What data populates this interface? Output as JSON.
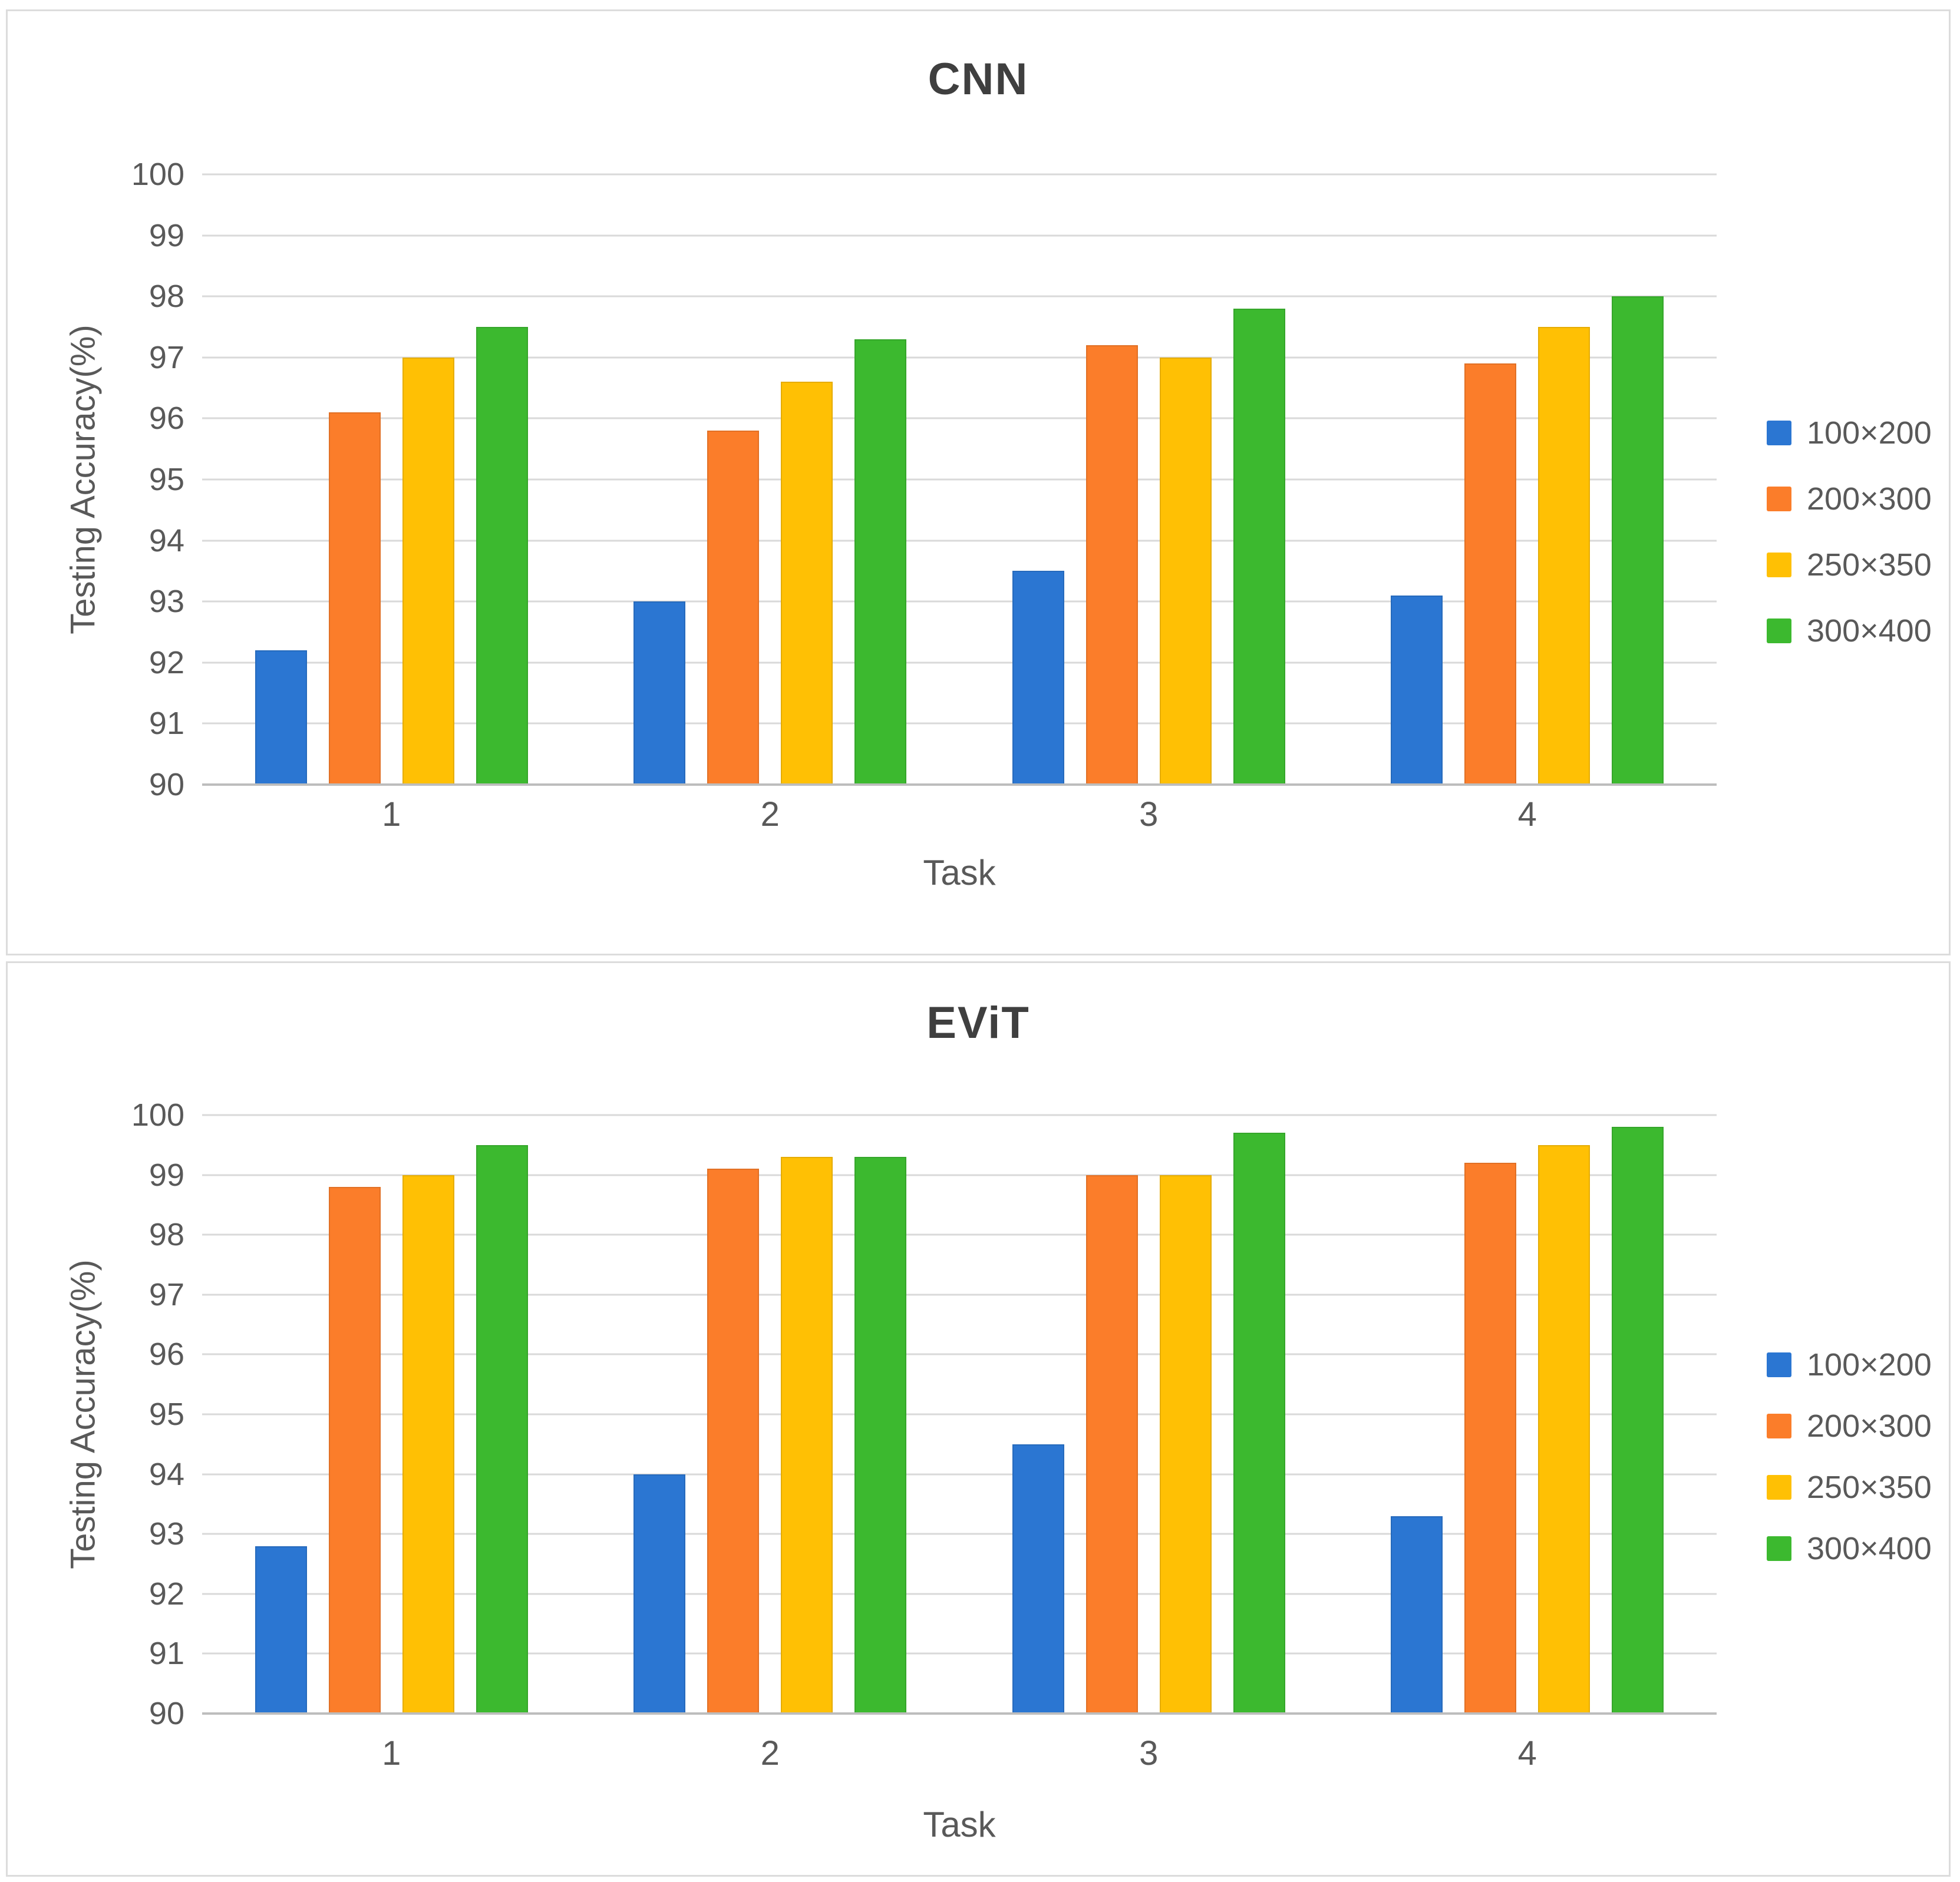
{
  "figure": {
    "panels": [
      "CNN",
      "EViT"
    ],
    "colors": {
      "blue": "#2B76D2",
      "orange": "#FB7D2A",
      "yellow": "#FFC004",
      "green": "#3CB92F",
      "gridline": "#D9D9D9",
      "axis_line": "#BDBDBD",
      "title_text": "#3F3F3F",
      "label_text": "#595959"
    }
  },
  "chart_data": [
    {
      "type": "bar",
      "title": "CNN",
      "xlabel": "Task",
      "ylabel": "Testing Accuracy(%)",
      "categories": [
        "1",
        "2",
        "3",
        "4"
      ],
      "series": [
        {
          "name": "100×200",
          "color": "#2B76D2",
          "values": [
            92.2,
            93.0,
            93.5,
            93.1
          ]
        },
        {
          "name": "200×300",
          "color": "#FB7D2A",
          "values": [
            96.1,
            95.8,
            97.2,
            96.9
          ]
        },
        {
          "name": "250×350",
          "color": "#FFC004",
          "values": [
            97.0,
            96.6,
            97.0,
            97.5
          ]
        },
        {
          "name": "300×400",
          "color": "#3CB92F",
          "values": [
            97.5,
            97.3,
            97.8,
            98.0
          ]
        }
      ],
      "ylim": [
        90,
        100
      ],
      "yticks": [
        100,
        99,
        98,
        97,
        96,
        95,
        94,
        93,
        92,
        91,
        90
      ],
      "grid": true,
      "legend_position": "right"
    },
    {
      "type": "bar",
      "title": "EViT",
      "xlabel": "Task",
      "ylabel": "Testing Accuracy(%)",
      "categories": [
        "1",
        "2",
        "3",
        "4"
      ],
      "series": [
        {
          "name": "100×200",
          "color": "#2B76D2",
          "values": [
            92.8,
            94.0,
            94.5,
            93.3
          ]
        },
        {
          "name": "200×300",
          "color": "#FB7D2A",
          "values": [
            98.8,
            99.1,
            99.0,
            99.2
          ]
        },
        {
          "name": "250×350",
          "color": "#FFC004",
          "values": [
            99.0,
            99.3,
            99.0,
            99.5
          ]
        },
        {
          "name": "300×400",
          "color": "#3CB92F",
          "values": [
            99.5,
            99.3,
            99.7,
            99.8
          ]
        }
      ],
      "ylim": [
        90,
        100
      ],
      "yticks": [
        100,
        99,
        98,
        97,
        96,
        95,
        94,
        93,
        92,
        91,
        90
      ],
      "grid": true,
      "legend_position": "right"
    }
  ]
}
